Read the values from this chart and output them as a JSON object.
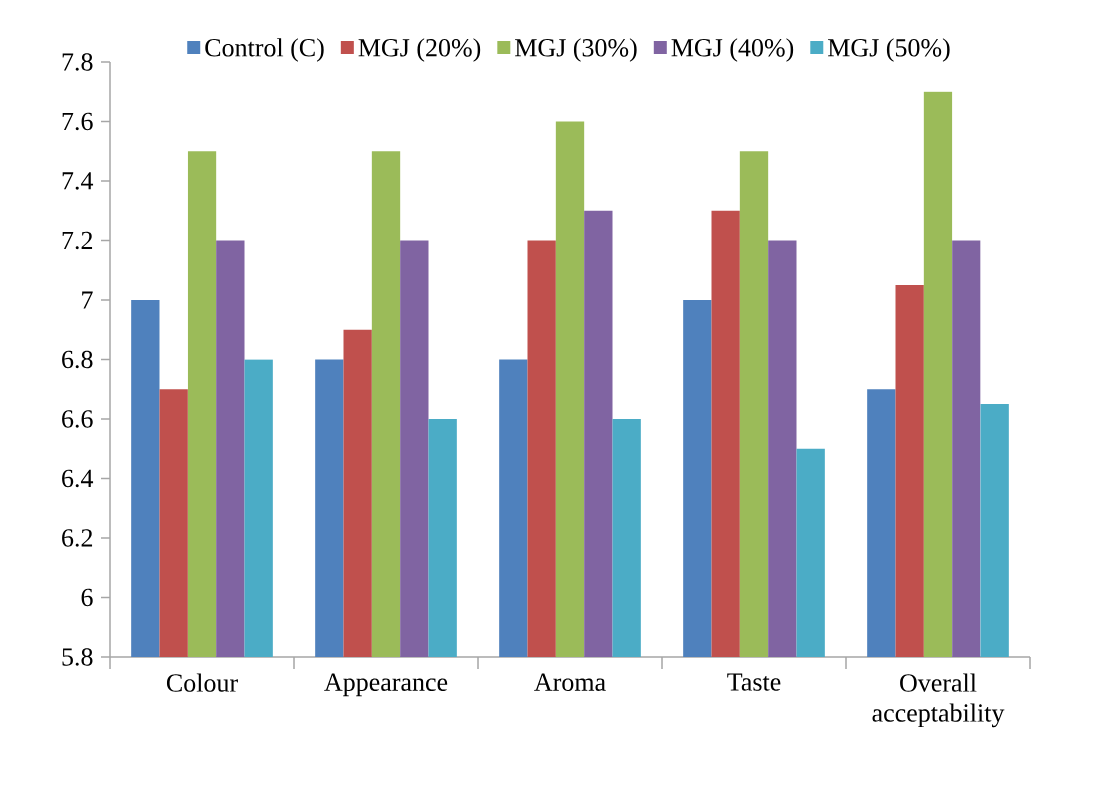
{
  "chart_data": {
    "type": "bar",
    "categories": [
      "Colour",
      "Appearance",
      "Aroma",
      "Taste",
      "Overall acceptability"
    ],
    "series": [
      {
        "name": "Control (C)",
        "color": "#4f81bd",
        "values": [
          7.0,
          6.8,
          6.8,
          7.0,
          6.7
        ]
      },
      {
        "name": "MGJ (20%)",
        "color": "#c0504d",
        "values": [
          6.7,
          6.9,
          7.2,
          7.3,
          7.05
        ]
      },
      {
        "name": "MGJ (30%)",
        "color": "#9bbb59",
        "values": [
          7.5,
          7.5,
          7.6,
          7.5,
          7.7
        ]
      },
      {
        "name": "MGJ (40%)",
        "color": "#8064a2",
        "values": [
          7.2,
          7.2,
          7.3,
          7.2,
          7.2
        ]
      },
      {
        "name": "MGJ (50%)",
        "color": "#4bacc6",
        "values": [
          6.8,
          6.6,
          6.6,
          6.5,
          6.65
        ]
      }
    ],
    "ylim": [
      5.8,
      7.8
    ],
    "yticks": [
      5.8,
      6,
      6.2,
      6.4,
      6.6,
      6.8,
      7,
      7.2,
      7.4,
      7.6,
      7.8
    ],
    "grid": false,
    "legend": "top"
  }
}
